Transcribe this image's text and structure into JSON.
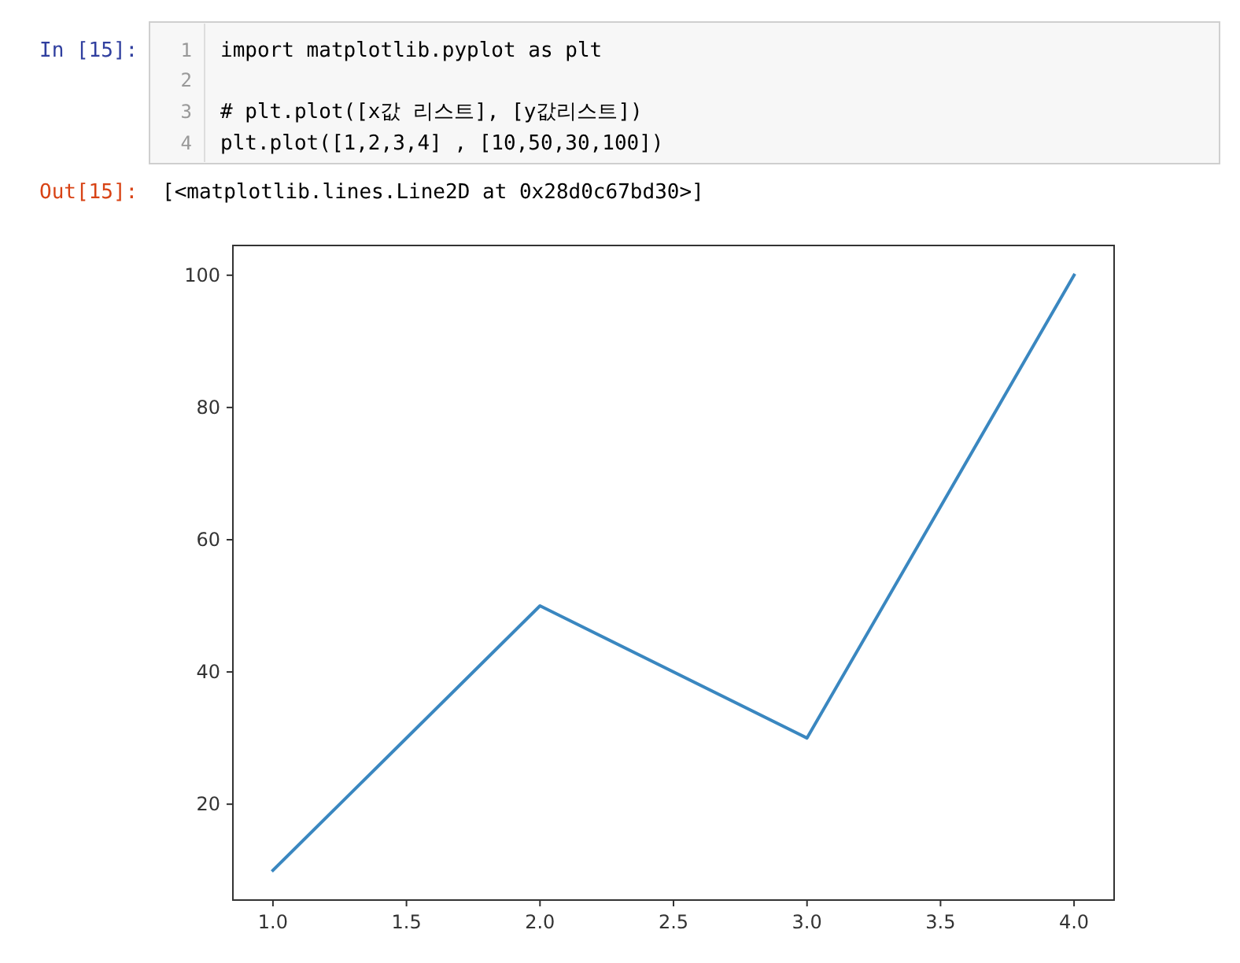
{
  "chart_data": {
    "type": "line",
    "x": [
      1,
      2,
      3,
      4
    ],
    "values": [
      10,
      50,
      30,
      100
    ],
    "color": "#3a87c0",
    "xlim": [
      0.85,
      4.15
    ],
    "ylim": [
      5.5,
      104.5
    ],
    "xticks": [
      {
        "value": 1,
        "label": "1.0"
      },
      {
        "value": 1.5,
        "label": "1.5"
      },
      {
        "value": 2,
        "label": "2.0"
      },
      {
        "value": 2.5,
        "label": "2.5"
      },
      {
        "value": 3,
        "label": "3.0"
      },
      {
        "value": 3.5,
        "label": "3.5"
      },
      {
        "value": 4,
        "label": "4.0"
      }
    ],
    "yticks": [
      20,
      40,
      60,
      80,
      100
    ],
    "grid": false,
    "annotations": [
      "In [15]:",
      "1",
      "2",
      "3",
      "4",
      "import matplotlib.pyplot as plt",
      null,
      "# plt.plot([x값 리스트], [y값리스트])",
      "plt.plot([1,2,3,4] , [10,50,30,100])",
      "Out[15]:",
      "[<matplotlib.lines.Line2D at 0x28d0c67bd30>]"
    ]
  }
}
